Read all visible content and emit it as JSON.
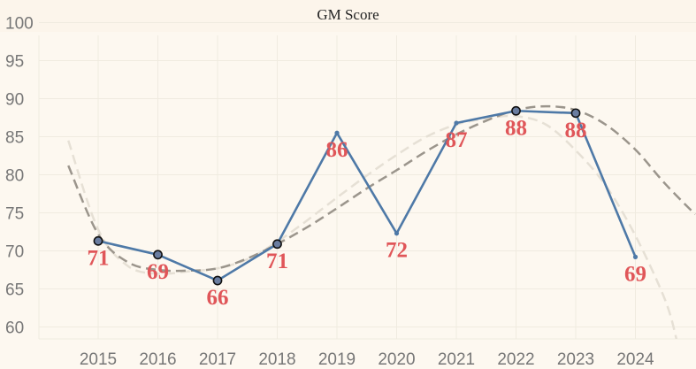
{
  "chart_data": {
    "type": "line",
    "title": "GM Score",
    "xlabel": "",
    "ylabel": "",
    "categories": [
      "2015",
      "2016",
      "2017",
      "2018",
      "2019",
      "2020",
      "2021",
      "2022",
      "2023",
      "2024"
    ],
    "y_ticks": [
      60,
      65,
      70,
      75,
      80,
      85,
      90,
      95,
      100
    ],
    "ylim": [
      58,
      101
    ],
    "grid": true,
    "legend": "none",
    "series": [
      {
        "values": [
          71.3,
          69.5,
          66.1,
          70.9,
          85.5,
          72.3,
          86.8,
          88.4,
          88.1,
          69.2
        ],
        "labels": [
          "71",
          "69",
          "66",
          "71",
          "86",
          "72",
          "87",
          "88",
          "88",
          "69"
        ],
        "marker_circle": [
          true,
          true,
          true,
          true,
          false,
          false,
          false,
          true,
          true,
          false
        ]
      }
    ],
    "trendlines": [
      {
        "style": "dashed",
        "color": "#9b958c",
        "points": [
          [
            2014.5,
            81.2
          ],
          [
            2015,
            72.2
          ],
          [
            2015.5,
            68.5
          ],
          [
            2016,
            67.5
          ],
          [
            2016.5,
            67.4
          ],
          [
            2017,
            67.7
          ],
          [
            2017.5,
            69.0
          ],
          [
            2018,
            70.9
          ],
          [
            2018.5,
            73.1
          ],
          [
            2019,
            75.6
          ],
          [
            2019.5,
            78.2
          ],
          [
            2020,
            80.6
          ],
          [
            2020.5,
            83.1
          ],
          [
            2021,
            85.3
          ],
          [
            2021.5,
            87.1
          ],
          [
            2022,
            88.5
          ],
          [
            2022.5,
            89.0
          ],
          [
            2023,
            88.5
          ],
          [
            2023.5,
            86.6
          ],
          [
            2024,
            83.3
          ],
          [
            2024.5,
            78.8
          ],
          [
            2025,
            74.8
          ]
        ]
      },
      {
        "style": "dashed",
        "color": "#e6e0d5",
        "points": [
          [
            2014.5,
            84.5
          ],
          [
            2015,
            72.8
          ],
          [
            2015.5,
            68.0
          ],
          [
            2016,
            67.0
          ],
          [
            2016.5,
            67.3
          ],
          [
            2017,
            67.7
          ],
          [
            2017.5,
            68.9
          ],
          [
            2018,
            71.2
          ],
          [
            2018.5,
            74.0
          ],
          [
            2019,
            77.0
          ],
          [
            2019.5,
            79.9
          ],
          [
            2020,
            82.6
          ],
          [
            2020.5,
            85.0
          ],
          [
            2021,
            86.6
          ],
          [
            2021.5,
            87.4
          ],
          [
            2022,
            87.7
          ],
          [
            2022.5,
            86.6
          ],
          [
            2023,
            83.2
          ],
          [
            2023.5,
            78.6
          ],
          [
            2024,
            72.0
          ],
          [
            2024.5,
            63.5
          ],
          [
            2024.7,
            58.0
          ]
        ]
      }
    ],
    "colors": {
      "line": "#4e79a7",
      "label": "#e05659",
      "marker_fill": "#6a7da0",
      "marker_stroke": "#111111",
      "grid": "#f0ebe0",
      "background": "#fdf8f0",
      "title_bg": "#fcf5eb"
    }
  }
}
